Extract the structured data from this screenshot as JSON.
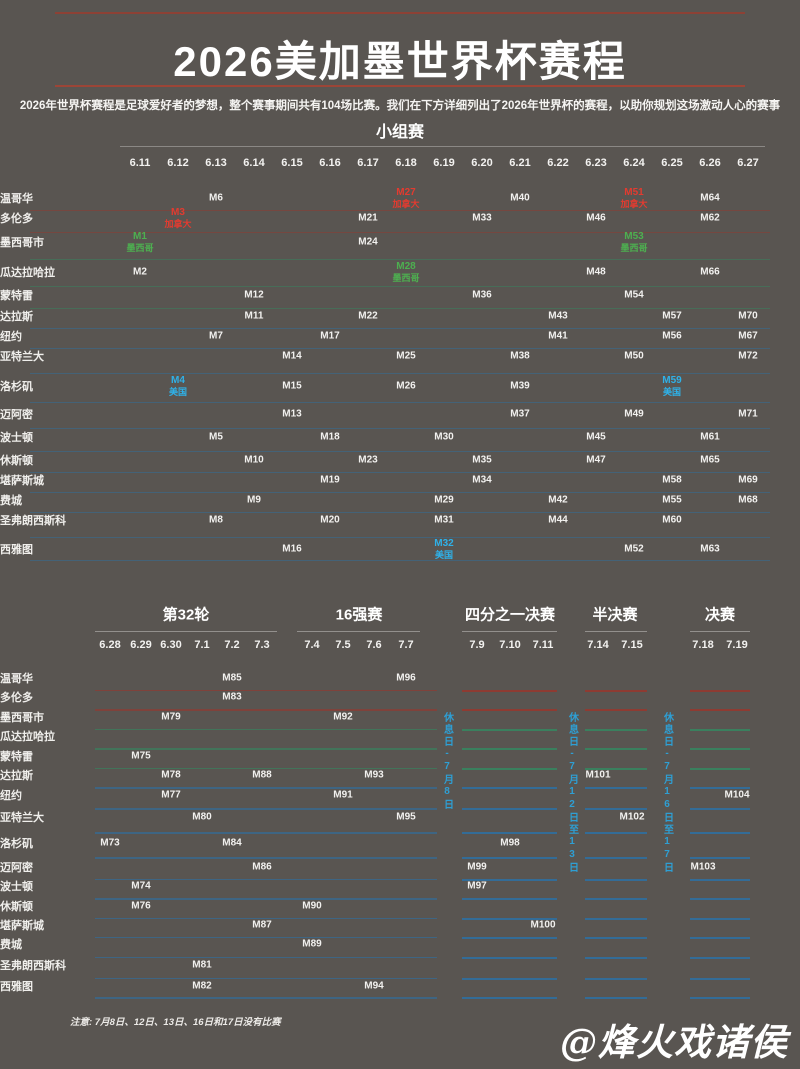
{
  "page": {
    "title": "2026美加墨世界杯赛程",
    "subtitle": "2026年世界杯赛程是足球爱好者的梦想，整个赛事期间共有104场比赛。我们在下方详细列出了2026年世界杯的赛程，以助你规划这场激动人心的赛事",
    "note": "注意: 7月8日、12日、13日、16日和17日没有比赛",
    "watermark": "@烽火戏诸侯"
  },
  "colors": {
    "background": "#595551",
    "title_rule_red": "#9c4537",
    "canada": "#e23b30",
    "mexico": "#4db050",
    "usa": "#2fb1e8",
    "rest_day_blue": "#2e9fd4",
    "row_line_canada": "#93392f",
    "row_line_mexico": "#36855f",
    "row_line_usa": "#2f6f9e"
  },
  "chart_data": {
    "type": "table",
    "title": "2026美加墨世界杯赛程",
    "total_matches": 104,
    "group_stage": {
      "header": "小组赛",
      "dates": [
        "6.11",
        "6.12",
        "6.13",
        "6.14",
        "6.15",
        "6.16",
        "6.17",
        "6.18",
        "6.19",
        "6.20",
        "6.21",
        "6.22",
        "6.23",
        "6.24",
        "6.25",
        "6.26",
        "6.27"
      ],
      "rows": [
        {
          "city": "温哥华",
          "country": "canada",
          "matches": [
            {
              "m": "M6",
              "d": "6.13"
            },
            {
              "m": "M27",
              "d": "6.18",
              "hl": "canada",
              "tag": "加拿大"
            },
            {
              "m": "M40",
              "d": "6.21"
            },
            {
              "m": "M51",
              "d": "6.24",
              "hl": "canada",
              "tag": "加拿大"
            },
            {
              "m": "M64",
              "d": "6.26"
            }
          ]
        },
        {
          "city": "多伦多",
          "country": "canada",
          "matches": [
            {
              "m": "M3",
              "d": "6.12",
              "hl": "canada",
              "tag": "加拿大"
            },
            {
              "m": "M21",
              "d": "6.17"
            },
            {
              "m": "M33",
              "d": "6.20"
            },
            {
              "m": "M46",
              "d": "6.23"
            },
            {
              "m": "M62",
              "d": "6.26"
            }
          ]
        },
        {
          "city": "墨西哥市",
          "country": "mexico",
          "matches": [
            {
              "m": "M1",
              "d": "6.11",
              "hl": "mexico",
              "tag": "墨西哥"
            },
            {
              "m": "M24",
              "d": "6.17"
            },
            {
              "m": "M53",
              "d": "6.24",
              "hl": "mexico",
              "tag": "墨西哥"
            }
          ]
        },
        {
          "city": "瓜达拉哈拉",
          "country": "mexico",
          "matches": [
            {
              "m": "M2",
              "d": "6.11"
            },
            {
              "m": "M28",
              "d": "6.18",
              "hl": "mexico",
              "tag": "墨西哥"
            },
            {
              "m": "M48",
              "d": "6.23"
            },
            {
              "m": "M66",
              "d": "6.26"
            }
          ]
        },
        {
          "city": "蒙特雷",
          "country": "mexico",
          "matches": [
            {
              "m": "M12",
              "d": "6.14"
            },
            {
              "m": "M36",
              "d": "6.20"
            },
            {
              "m": "M54",
              "d": "6.24"
            }
          ]
        },
        {
          "city": "达拉斯",
          "country": "usa",
          "matches": [
            {
              "m": "M11",
              "d": "6.14"
            },
            {
              "m": "M22",
              "d": "6.17"
            },
            {
              "m": "M43",
              "d": "6.22"
            },
            {
              "m": "M57",
              "d": "6.25"
            },
            {
              "m": "M70",
              "d": "6.27"
            }
          ]
        },
        {
          "city": "纽约",
          "country": "usa",
          "matches": [
            {
              "m": "M7",
              "d": "6.13"
            },
            {
              "m": "M17",
              "d": "6.16"
            },
            {
              "m": "M41",
              "d": "6.22"
            },
            {
              "m": "M56",
              "d": "6.25"
            },
            {
              "m": "M67",
              "d": "6.27"
            }
          ]
        },
        {
          "city": "亚特兰大",
          "country": "usa",
          "matches": [
            {
              "m": "M14",
              "d": "6.15"
            },
            {
              "m": "M25",
              "d": "6.18"
            },
            {
              "m": "M38",
              "d": "6.21"
            },
            {
              "m": "M50",
              "d": "6.24"
            },
            {
              "m": "M72",
              "d": "6.27"
            }
          ]
        },
        {
          "city": "洛杉矶",
          "country": "usa",
          "matches": [
            {
              "m": "M4",
              "d": "6.12",
              "hl": "usa",
              "tag": "美国"
            },
            {
              "m": "M15",
              "d": "6.15"
            },
            {
              "m": "M26",
              "d": "6.18"
            },
            {
              "m": "M39",
              "d": "6.21"
            },
            {
              "m": "M59",
              "d": "6.25",
              "hl": "usa",
              "tag": "美国"
            }
          ]
        },
        {
          "city": "迈阿密",
          "country": "usa",
          "matches": [
            {
              "m": "M13",
              "d": "6.15"
            },
            {
              "m": "M37",
              "d": "6.21"
            },
            {
              "m": "M49",
              "d": "6.24"
            },
            {
              "m": "M71",
              "d": "6.27"
            }
          ]
        },
        {
          "city": "波士顿",
          "country": "usa",
          "matches": [
            {
              "m": "M5",
              "d": "6.13"
            },
            {
              "m": "M18",
              "d": "6.16"
            },
            {
              "m": "M30",
              "d": "6.19"
            },
            {
              "m": "M45",
              "d": "6.23"
            },
            {
              "m": "M61",
              "d": "6.26"
            }
          ]
        },
        {
          "city": "休斯顿",
          "country": "usa",
          "matches": [
            {
              "m": "M10",
              "d": "6.14"
            },
            {
              "m": "M23",
              "d": "6.17"
            },
            {
              "m": "M35",
              "d": "6.20"
            },
            {
              "m": "M47",
              "d": "6.23"
            },
            {
              "m": "M65",
              "d": "6.26"
            }
          ]
        },
        {
          "city": "堪萨斯城",
          "country": "usa",
          "matches": [
            {
              "m": "M19",
              "d": "6.16"
            },
            {
              "m": "M34",
              "d": "6.20"
            },
            {
              "m": "M58",
              "d": "6.25"
            },
            {
              "m": "M69",
              "d": "6.27"
            }
          ]
        },
        {
          "city": "费城",
          "country": "usa",
          "matches": [
            {
              "m": "M9",
              "d": "6.14"
            },
            {
              "m": "M29",
              "d": "6.19"
            },
            {
              "m": "M42",
              "d": "6.22"
            },
            {
              "m": "M55",
              "d": "6.25"
            },
            {
              "m": "M68",
              "d": "6.27"
            }
          ]
        },
        {
          "city": "圣弗朗西斯科",
          "country": "usa",
          "matches": [
            {
              "m": "M8",
              "d": "6.13"
            },
            {
              "m": "M20",
              "d": "6.16"
            },
            {
              "m": "M31",
              "d": "6.19"
            },
            {
              "m": "M44",
              "d": "6.22"
            },
            {
              "m": "M60",
              "d": "6.25"
            }
          ]
        },
        {
          "city": "西雅图",
          "country": "usa",
          "matches": [
            {
              "m": "M16",
              "d": "6.15"
            },
            {
              "m": "M32",
              "d": "6.19",
              "hl": "usa",
              "tag": "美国"
            },
            {
              "m": "M52",
              "d": "6.24"
            },
            {
              "m": "M63",
              "d": "6.26"
            }
          ]
        }
      ]
    },
    "knockout": {
      "sections": [
        {
          "title": "第32轮",
          "dates": [
            "6.28",
            "6.29",
            "6.30",
            "7.1",
            "7.2",
            "7.3"
          ]
        },
        {
          "title": "16强赛",
          "dates": [
            "7.4",
            "7.5",
            "7.6",
            "7.7"
          ]
        },
        {
          "title": "四分之一决赛",
          "dates": [
            "7.9",
            "7.10",
            "7.11"
          ]
        },
        {
          "title": "半决赛",
          "dates": [
            "7.14",
            "7.15"
          ]
        },
        {
          "title": "决赛",
          "dates": [
            "7.18",
            "7.19"
          ]
        }
      ],
      "rest_labels": [
        "休息日-7月8日",
        "休息日-7月12日至13日",
        "休息日-7月16日至17日"
      ],
      "rows": [
        {
          "city": "温哥华",
          "country": "canada",
          "matches": [
            {
              "m": "M85",
              "d": "7.2"
            },
            {
              "m": "M96",
              "d": "7.7"
            }
          ]
        },
        {
          "city": "多伦多",
          "country": "canada",
          "matches": [
            {
              "m": "M83",
              "d": "7.2"
            }
          ]
        },
        {
          "city": "墨西哥市",
          "country": "mexico",
          "matches": [
            {
              "m": "M79",
              "d": "6.30"
            },
            {
              "m": "M92",
              "d": "7.5"
            }
          ]
        },
        {
          "city": "瓜达拉哈拉",
          "country": "mexico",
          "matches": []
        },
        {
          "city": "蒙特雷",
          "country": "mexico",
          "matches": [
            {
              "m": "M75",
              "d": "6.29"
            }
          ]
        },
        {
          "city": "达拉斯",
          "country": "usa",
          "matches": [
            {
              "m": "M78",
              "d": "6.30"
            },
            {
              "m": "M88",
              "d": "7.3"
            },
            {
              "m": "M93",
              "d": "7.6"
            },
            {
              "m": "M101",
              "d": "7.14"
            }
          ]
        },
        {
          "city": "纽约",
          "country": "usa",
          "matches": [
            {
              "m": "M77",
              "d": "6.30"
            },
            {
              "m": "M91",
              "d": "7.5"
            },
            {
              "m": "M104",
              "d": "7.19"
            }
          ]
        },
        {
          "city": "亚特兰大",
          "country": "usa",
          "matches": [
            {
              "m": "M80",
              "d": "7.1"
            },
            {
              "m": "M95",
              "d": "7.7"
            },
            {
              "m": "M102",
              "d": "7.15"
            }
          ]
        },
        {
          "city": "洛杉矶",
          "country": "usa",
          "matches": [
            {
              "m": "M73",
              "d": "6.28"
            },
            {
              "m": "M84",
              "d": "7.2"
            },
            {
              "m": "M98",
              "d": "7.10"
            }
          ]
        },
        {
          "city": "迈阿密",
          "country": "usa",
          "matches": [
            {
              "m": "M86",
              "d": "7.3"
            },
            {
              "m": "M99",
              "d": "7.9"
            },
            {
              "m": "M103",
              "d": "7.18"
            }
          ]
        },
        {
          "city": "波士顿",
          "country": "usa",
          "matches": [
            {
              "m": "M74",
              "d": "6.29"
            },
            {
              "m": "M97",
              "d": "7.9"
            }
          ]
        },
        {
          "city": "休斯顿",
          "country": "usa",
          "matches": [
            {
              "m": "M76",
              "d": "6.29"
            },
            {
              "m": "M90",
              "d": "7.4"
            }
          ]
        },
        {
          "city": "堪萨斯城",
          "country": "usa",
          "matches": [
            {
              "m": "M87",
              "d": "7.3"
            },
            {
              "m": "M100",
              "d": "7.11"
            }
          ]
        },
        {
          "city": "费城",
          "country": "usa",
          "matches": [
            {
              "m": "M89",
              "d": "7.4"
            }
          ]
        },
        {
          "city": "圣弗朗西斯科",
          "country": "usa",
          "matches": [
            {
              "m": "M81",
              "d": "7.1"
            }
          ]
        },
        {
          "city": "西雅图",
          "country": "usa",
          "matches": [
            {
              "m": "M82",
              "d": "7.1"
            },
            {
              "m": "M94",
              "d": "7.6"
            }
          ]
        }
      ]
    }
  }
}
